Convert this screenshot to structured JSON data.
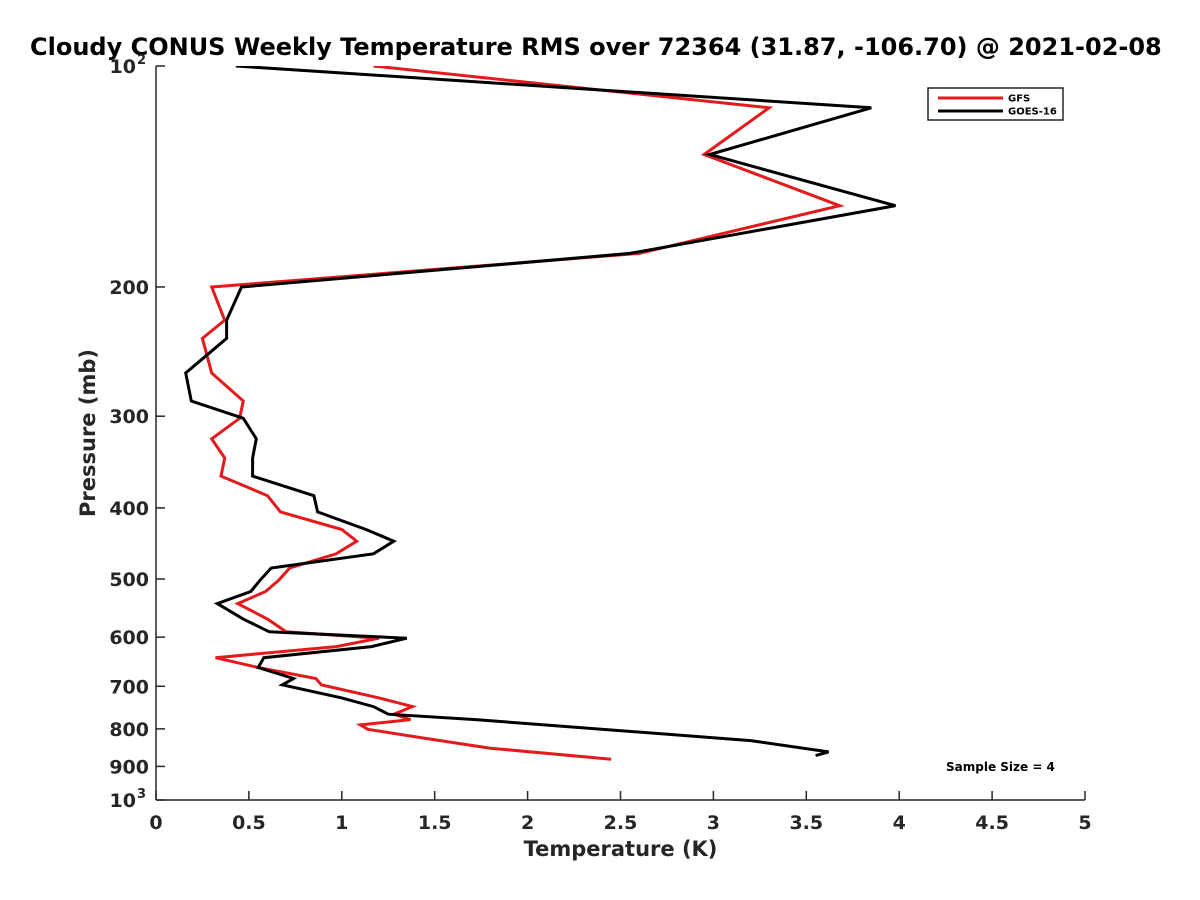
{
  "chart_data": {
    "type": "line",
    "title": "Cloudy CONUS Weekly Temperature RMS over 72364 (31.87, -106.70) @ 2021-02-08",
    "xlabel": "Temperature (K)",
    "ylabel": "Pressure (mb)",
    "xlim": [
      0,
      5
    ],
    "ylim": [
      100,
      1000
    ],
    "y_scale": "log",
    "y_reversed": true,
    "grid": false,
    "legend_position": "top-right",
    "x_ticks": [
      "0",
      "0.5",
      "1",
      "1.5",
      "2",
      "2.5",
      "3",
      "3.5",
      "4",
      "4.5",
      "5"
    ],
    "y_ticks": [
      {
        "value": 100,
        "base": "10",
        "exp": "2"
      },
      {
        "value": 200,
        "label": "200"
      },
      {
        "value": 300,
        "label": "300"
      },
      {
        "value": 400,
        "label": "400"
      },
      {
        "value": 500,
        "label": "500"
      },
      {
        "value": 600,
        "label": "600"
      },
      {
        "value": 700,
        "label": "700"
      },
      {
        "value": 800,
        "label": "800"
      },
      {
        "value": 900,
        "label": "900"
      },
      {
        "value": 1000,
        "base": "10",
        "exp": "3"
      }
    ],
    "annotation": "Sample Size = 4",
    "series": [
      {
        "name": "GFS",
        "color": "#e41a1c",
        "points": [
          [
            1.17,
            100
          ],
          [
            3.3,
            114
          ],
          [
            2.95,
            132
          ],
          [
            3.68,
            155
          ],
          [
            2.6,
            180
          ],
          [
            0.3,
            200
          ],
          [
            0.37,
            222
          ],
          [
            0.25,
            235
          ],
          [
            0.3,
            262
          ],
          [
            0.47,
            286
          ],
          [
            0.45,
            302
          ],
          [
            0.3,
            322
          ],
          [
            0.37,
            342
          ],
          [
            0.35,
            362
          ],
          [
            0.6,
            385
          ],
          [
            0.67,
            405
          ],
          [
            1.0,
            428
          ],
          [
            1.08,
            444
          ],
          [
            0.97,
            462
          ],
          [
            0.72,
            483
          ],
          [
            0.66,
            502
          ],
          [
            0.59,
            520
          ],
          [
            0.44,
            540
          ],
          [
            0.6,
            567
          ],
          [
            0.7,
            590
          ],
          [
            1.2,
            602
          ],
          [
            0.97,
            618
          ],
          [
            0.32,
            640
          ],
          [
            0.55,
            660
          ],
          [
            0.86,
            683
          ],
          [
            0.89,
            697
          ],
          [
            1.2,
            726
          ],
          [
            1.38,
            746
          ],
          [
            1.28,
            764
          ],
          [
            1.37,
            777
          ],
          [
            1.1,
            790
          ],
          [
            1.14,
            801
          ],
          [
            1.42,
            822
          ],
          [
            1.8,
            850
          ],
          [
            2.45,
            880
          ]
        ]
      },
      {
        "name": "GOES-16",
        "color": "#000000",
        "points": [
          [
            0.43,
            100
          ],
          [
            3.85,
            114
          ],
          [
            2.98,
            132
          ],
          [
            3.98,
            155
          ],
          [
            2.55,
            180
          ],
          [
            0.46,
            200
          ],
          [
            0.38,
            222
          ],
          [
            0.38,
            235
          ],
          [
            0.16,
            262
          ],
          [
            0.19,
            286
          ],
          [
            0.47,
            302
          ],
          [
            0.54,
            322
          ],
          [
            0.52,
            342
          ],
          [
            0.52,
            362
          ],
          [
            0.85,
            385
          ],
          [
            0.87,
            405
          ],
          [
            1.13,
            428
          ],
          [
            1.28,
            444
          ],
          [
            1.17,
            462
          ],
          [
            0.62,
            483
          ],
          [
            0.56,
            502
          ],
          [
            0.51,
            520
          ],
          [
            0.33,
            540
          ],
          [
            0.47,
            567
          ],
          [
            0.61,
            590
          ],
          [
            1.35,
            602
          ],
          [
            1.16,
            618
          ],
          [
            0.58,
            640
          ],
          [
            0.55,
            660
          ],
          [
            0.74,
            683
          ],
          [
            0.68,
            697
          ],
          [
            1.0,
            726
          ],
          [
            1.17,
            746
          ],
          [
            1.25,
            764
          ],
          [
            1.72,
            777
          ],
          [
            3.2,
            830
          ],
          [
            3.62,
            860
          ],
          [
            3.55,
            870
          ]
        ]
      }
    ]
  }
}
